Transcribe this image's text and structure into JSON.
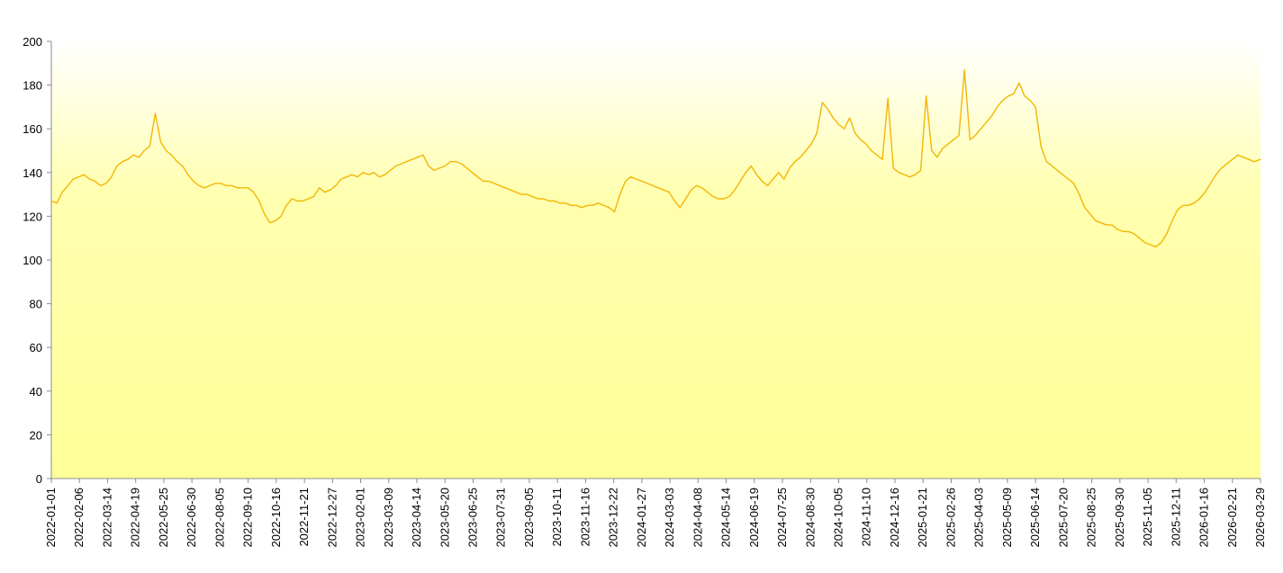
{
  "chart_data": {
    "type": "line",
    "title": "",
    "xlabel": "",
    "ylabel": "",
    "ylim": [
      0,
      200
    ],
    "y_ticks": [
      0,
      20,
      40,
      60,
      80,
      100,
      120,
      140,
      160,
      180,
      200
    ],
    "x_range": [
      "2022-01-01",
      "2026-03-29"
    ],
    "x_tick_labels": [
      "2022-01-01",
      "2022-02-06",
      "2022-03-14",
      "2022-04-19",
      "2022-05-25",
      "2022-06-30",
      "2022-08-05",
      "2022-09-10",
      "2022-10-16",
      "2022-11-21",
      "2022-12-27",
      "2023-02-01",
      "2023-03-09",
      "2023-04-14",
      "2023-05-20",
      "2023-06-25",
      "2023-07-31",
      "2023-09-05",
      "2023-10-11",
      "2023-11-16",
      "2023-12-22",
      "2024-01-27",
      "2024-03-03",
      "2024-04-08",
      "2024-05-14",
      "2024-06-19",
      "2024-07-25",
      "2024-08-30",
      "2024-10-05",
      "2024-11-10",
      "2024-12-16",
      "2025-01-21",
      "2025-02-26",
      "2025-04-03",
      "2025-05-09",
      "2025-06-14",
      "2025-07-20",
      "2025-08-25",
      "2025-09-30",
      "2025-11-05",
      "2025-12-11",
      "2026-01-16",
      "2026-02-21",
      "2026-03-29"
    ],
    "grid": false,
    "background": {
      "top": "#ffffff",
      "bottom": "#ffff99"
    },
    "series": [
      {
        "color": "#f2b705",
        "points": [
          [
            "2022-01-01",
            127
          ],
          [
            "2022-01-08",
            126
          ],
          [
            "2022-01-15",
            131
          ],
          [
            "2022-01-22",
            134
          ],
          [
            "2022-01-29",
            137
          ],
          [
            "2022-02-05",
            138
          ],
          [
            "2022-02-12",
            139
          ],
          [
            "2022-02-19",
            137
          ],
          [
            "2022-02-26",
            136
          ],
          [
            "2022-03-05",
            134
          ],
          [
            "2022-03-12",
            135
          ],
          [
            "2022-03-19",
            138
          ],
          [
            "2022-03-26",
            143
          ],
          [
            "2022-04-02",
            145
          ],
          [
            "2022-04-09",
            146
          ],
          [
            "2022-04-16",
            148
          ],
          [
            "2022-04-23",
            147
          ],
          [
            "2022-04-30",
            150
          ],
          [
            "2022-05-07",
            152
          ],
          [
            "2022-05-14",
            167
          ],
          [
            "2022-05-21",
            154
          ],
          [
            "2022-05-28",
            150
          ],
          [
            "2022-06-04",
            148
          ],
          [
            "2022-06-11",
            145
          ],
          [
            "2022-06-18",
            143
          ],
          [
            "2022-06-25",
            139
          ],
          [
            "2022-07-02",
            136
          ],
          [
            "2022-07-09",
            134
          ],
          [
            "2022-07-16",
            133
          ],
          [
            "2022-07-23",
            134
          ],
          [
            "2022-07-30",
            135
          ],
          [
            "2022-08-06",
            135
          ],
          [
            "2022-08-13",
            134
          ],
          [
            "2022-08-20",
            134
          ],
          [
            "2022-08-27",
            133
          ],
          [
            "2022-09-03",
            133
          ],
          [
            "2022-09-10",
            133
          ],
          [
            "2022-09-17",
            131
          ],
          [
            "2022-09-24",
            127
          ],
          [
            "2022-10-01",
            121
          ],
          [
            "2022-10-08",
            117
          ],
          [
            "2022-10-15",
            118
          ],
          [
            "2022-10-22",
            120
          ],
          [
            "2022-10-29",
            125
          ],
          [
            "2022-11-05",
            128
          ],
          [
            "2022-11-12",
            127
          ],
          [
            "2022-11-19",
            127
          ],
          [
            "2022-11-26",
            128
          ],
          [
            "2022-12-03",
            129
          ],
          [
            "2022-12-10",
            133
          ],
          [
            "2022-12-17",
            131
          ],
          [
            "2022-12-24",
            132
          ],
          [
            "2022-12-31",
            134
          ],
          [
            "2023-01-07",
            137
          ],
          [
            "2023-01-14",
            138
          ],
          [
            "2023-01-21",
            139
          ],
          [
            "2023-01-28",
            138
          ],
          [
            "2023-02-04",
            140
          ],
          [
            "2023-02-11",
            139
          ],
          [
            "2023-02-18",
            140
          ],
          [
            "2023-02-25",
            138
          ],
          [
            "2023-03-04",
            139
          ],
          [
            "2023-03-11",
            141
          ],
          [
            "2023-03-18",
            143
          ],
          [
            "2023-03-25",
            144
          ],
          [
            "2023-04-01",
            145
          ],
          [
            "2023-04-08",
            146
          ],
          [
            "2023-04-15",
            147
          ],
          [
            "2023-04-22",
            148
          ],
          [
            "2023-04-29",
            143
          ],
          [
            "2023-05-06",
            141
          ],
          [
            "2023-05-13",
            142
          ],
          [
            "2023-05-20",
            143
          ],
          [
            "2023-05-27",
            145
          ],
          [
            "2023-06-03",
            145
          ],
          [
            "2023-06-10",
            144
          ],
          [
            "2023-06-17",
            142
          ],
          [
            "2023-06-24",
            140
          ],
          [
            "2023-07-01",
            138
          ],
          [
            "2023-07-08",
            136
          ],
          [
            "2023-07-15",
            136
          ],
          [
            "2023-07-22",
            135
          ],
          [
            "2023-07-29",
            134
          ],
          [
            "2023-08-05",
            133
          ],
          [
            "2023-08-12",
            132
          ],
          [
            "2023-08-19",
            131
          ],
          [
            "2023-08-26",
            130
          ],
          [
            "2023-09-02",
            130
          ],
          [
            "2023-09-09",
            129
          ],
          [
            "2023-09-16",
            128
          ],
          [
            "2023-09-23",
            128
          ],
          [
            "2023-09-30",
            127
          ],
          [
            "2023-10-07",
            127
          ],
          [
            "2023-10-14",
            126
          ],
          [
            "2023-10-21",
            126
          ],
          [
            "2023-10-28",
            125
          ],
          [
            "2023-11-04",
            125
          ],
          [
            "2023-11-11",
            124
          ],
          [
            "2023-11-18",
            125
          ],
          [
            "2023-11-25",
            125
          ],
          [
            "2023-12-02",
            126
          ],
          [
            "2023-12-09",
            125
          ],
          [
            "2023-12-16",
            124
          ],
          [
            "2023-12-23",
            122
          ],
          [
            "2023-12-30",
            130
          ],
          [
            "2024-01-06",
            136
          ],
          [
            "2024-01-13",
            138
          ],
          [
            "2024-01-20",
            137
          ],
          [
            "2024-01-27",
            136
          ],
          [
            "2024-02-03",
            135
          ],
          [
            "2024-02-10",
            134
          ],
          [
            "2024-02-17",
            133
          ],
          [
            "2024-02-24",
            132
          ],
          [
            "2024-03-02",
            131
          ],
          [
            "2024-03-09",
            127
          ],
          [
            "2024-03-16",
            124
          ],
          [
            "2024-03-23",
            128
          ],
          [
            "2024-03-30",
            132
          ],
          [
            "2024-04-06",
            134
          ],
          [
            "2024-04-13",
            133
          ],
          [
            "2024-04-20",
            131
          ],
          [
            "2024-04-27",
            129
          ],
          [
            "2024-05-04",
            128
          ],
          [
            "2024-05-11",
            128
          ],
          [
            "2024-05-18",
            129
          ],
          [
            "2024-05-25",
            132
          ],
          [
            "2024-06-01",
            136
          ],
          [
            "2024-06-08",
            140
          ],
          [
            "2024-06-15",
            143
          ],
          [
            "2024-06-22",
            139
          ],
          [
            "2024-06-29",
            136
          ],
          [
            "2024-07-06",
            134
          ],
          [
            "2024-07-13",
            137
          ],
          [
            "2024-07-20",
            140
          ],
          [
            "2024-07-27",
            137
          ],
          [
            "2024-08-03",
            142
          ],
          [
            "2024-08-10",
            145
          ],
          [
            "2024-08-17",
            147
          ],
          [
            "2024-08-24",
            150
          ],
          [
            "2024-08-31",
            153
          ],
          [
            "2024-09-07",
            158
          ],
          [
            "2024-09-14",
            172
          ],
          [
            "2024-09-21",
            169
          ],
          [
            "2024-09-28",
            165
          ],
          [
            "2024-10-05",
            162
          ],
          [
            "2024-10-12",
            160
          ],
          [
            "2024-10-19",
            165
          ],
          [
            "2024-10-26",
            158
          ],
          [
            "2024-11-02",
            155
          ],
          [
            "2024-11-09",
            153
          ],
          [
            "2024-11-16",
            150
          ],
          [
            "2024-11-23",
            148
          ],
          [
            "2024-11-30",
            146
          ],
          [
            "2024-12-07",
            174
          ],
          [
            "2024-12-14",
            142
          ],
          [
            "2024-12-21",
            140
          ],
          [
            "2024-12-28",
            139
          ],
          [
            "2025-01-04",
            138
          ],
          [
            "2025-01-11",
            139
          ],
          [
            "2025-01-18",
            141
          ],
          [
            "2025-01-25",
            175
          ],
          [
            "2025-02-01",
            150
          ],
          [
            "2025-02-08",
            147
          ],
          [
            "2025-02-15",
            151
          ],
          [
            "2025-02-22",
            153
          ],
          [
            "2025-03-01",
            155
          ],
          [
            "2025-03-08",
            157
          ],
          [
            "2025-03-15",
            187
          ],
          [
            "2025-03-22",
            155
          ],
          [
            "2025-03-29",
            157
          ],
          [
            "2025-04-05",
            160
          ],
          [
            "2025-04-12",
            163
          ],
          [
            "2025-04-19",
            166
          ],
          [
            "2025-04-26",
            170
          ],
          [
            "2025-05-03",
            173
          ],
          [
            "2025-05-10",
            175
          ],
          [
            "2025-05-17",
            176
          ],
          [
            "2025-05-24",
            181
          ],
          [
            "2025-05-31",
            175
          ],
          [
            "2025-06-07",
            173
          ],
          [
            "2025-06-14",
            170
          ],
          [
            "2025-06-21",
            152
          ],
          [
            "2025-06-28",
            145
          ],
          [
            "2025-07-05",
            143
          ],
          [
            "2025-07-12",
            141
          ],
          [
            "2025-07-19",
            139
          ],
          [
            "2025-07-26",
            137
          ],
          [
            "2025-08-02",
            135
          ],
          [
            "2025-08-09",
            130
          ],
          [
            "2025-08-16",
            124
          ],
          [
            "2025-08-23",
            121
          ],
          [
            "2025-08-30",
            118
          ],
          [
            "2025-09-06",
            117
          ],
          [
            "2025-09-13",
            116
          ],
          [
            "2025-09-20",
            116
          ],
          [
            "2025-09-27",
            114
          ],
          [
            "2025-10-04",
            113
          ],
          [
            "2025-10-11",
            113
          ],
          [
            "2025-10-18",
            112
          ],
          [
            "2025-10-25",
            110
          ],
          [
            "2025-11-01",
            108
          ],
          [
            "2025-11-08",
            107
          ],
          [
            "2025-11-15",
            106
          ],
          [
            "2025-11-22",
            108
          ],
          [
            "2025-11-29",
            112
          ],
          [
            "2025-12-06",
            118
          ],
          [
            "2025-12-13",
            123
          ],
          [
            "2025-12-20",
            125
          ],
          [
            "2025-12-27",
            125
          ],
          [
            "2026-01-03",
            126
          ],
          [
            "2026-01-10",
            128
          ],
          [
            "2026-01-17",
            131
          ],
          [
            "2026-01-24",
            135
          ],
          [
            "2026-01-31",
            139
          ],
          [
            "2026-02-07",
            142
          ],
          [
            "2026-02-14",
            144
          ],
          [
            "2026-02-21",
            146
          ],
          [
            "2026-02-28",
            148
          ],
          [
            "2026-03-07",
            147
          ],
          [
            "2026-03-14",
            146
          ],
          [
            "2026-03-21",
            145
          ],
          [
            "2026-03-29",
            146
          ]
        ]
      }
    ]
  }
}
